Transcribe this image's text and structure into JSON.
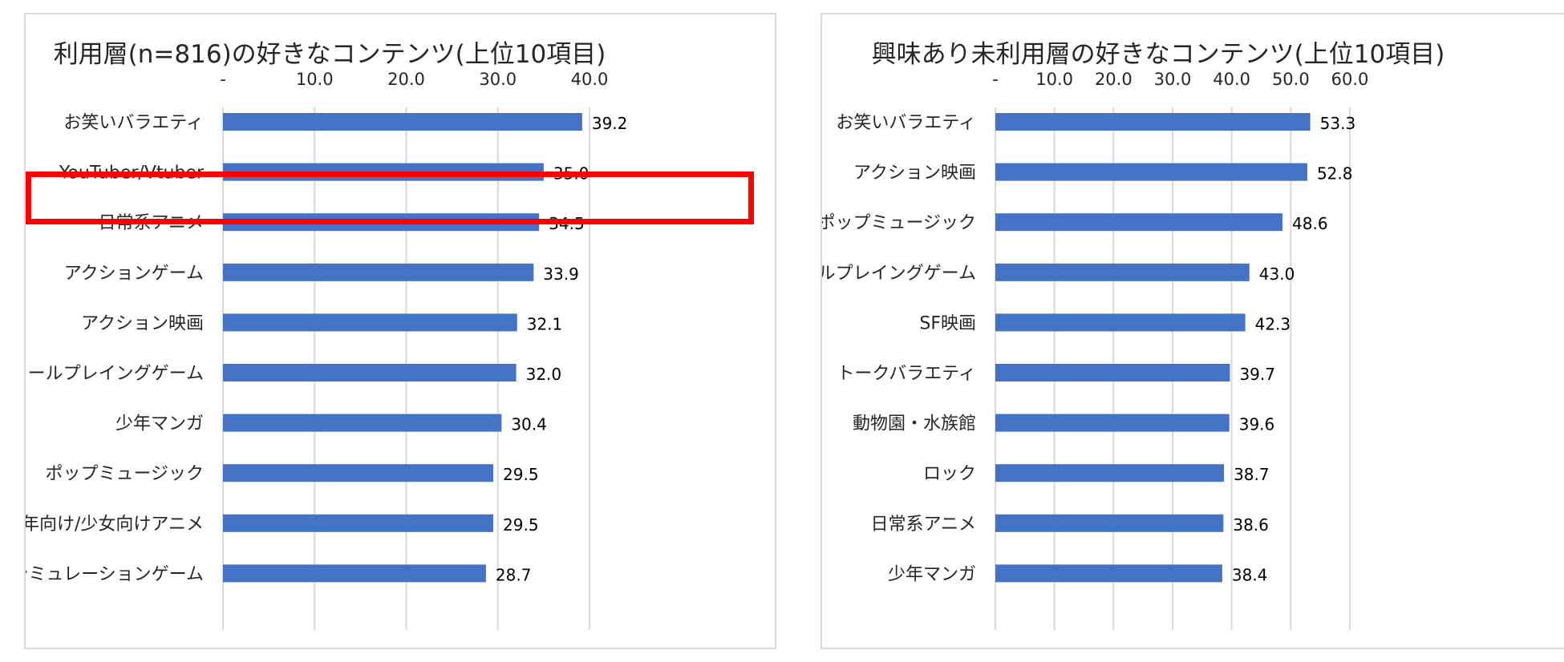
{
  "charts": [
    {
      "title": "利用層(n=816)の好きなコンテンツ(上位10項目)"
    },
    {
      "title": "興味あり未利用層の好きなコンテンツ(上位10項目)"
    }
  ],
  "chart_data": [
    {
      "type": "bar",
      "orientation": "horizontal",
      "title": "利用層(n=816)の好きなコンテンツ(上位10項目)",
      "categories": [
        "お笑いバラエティ",
        "YouTuber/Vtuber",
        "日常系アニメ",
        "アクションゲーム",
        "アクション映画",
        "ロールプレイングゲーム",
        "少年マンガ",
        "ポップミュージック",
        "少年向け/少女向けアニメ",
        "シミュレーションゲーム"
      ],
      "values": [
        39.2,
        35.0,
        34.5,
        33.9,
        32.1,
        32.0,
        30.4,
        29.5,
        29.5,
        28.7
      ],
      "value_labels": [
        "39.2",
        "35.0",
        "34.5",
        "33.9",
        "32.1",
        "32.0",
        "30.4",
        "29.5",
        "29.5",
        "28.7"
      ],
      "xlim": [
        0,
        40
      ],
      "ticks": [
        0,
        10,
        20,
        30,
        40
      ],
      "tick_labels": [
        "-",
        "10.0",
        "20.0",
        "30.0",
        "40.0"
      ],
      "axis_position": "top",
      "grid": true,
      "bar_color": "#4472c4",
      "highlighted_category": "YouTuber/Vtuber",
      "highlight_color": "#ff0000"
    },
    {
      "type": "bar",
      "orientation": "horizontal",
      "title": "興味あり未利用層の好きなコンテンツ(上位10項目)",
      "categories": [
        "お笑いバラエティ",
        "アクション映画",
        "ポップミュージック",
        "ロールプレイングゲーム",
        "SF映画",
        "トークバラエティ",
        "動物園・水族館",
        "ロック",
        "日常系アニメ",
        "少年マンガ"
      ],
      "values": [
        53.3,
        52.8,
        48.6,
        43.0,
        42.3,
        39.7,
        39.6,
        38.7,
        38.6,
        38.4
      ],
      "value_labels": [
        "53.3",
        "52.8",
        "48.6",
        "43.0",
        "42.3",
        "39.7",
        "39.6",
        "38.7",
        "38.6",
        "38.4"
      ],
      "xlim": [
        0,
        60
      ],
      "ticks": [
        0,
        10,
        20,
        30,
        40,
        50,
        60
      ],
      "tick_labels": [
        "-",
        "10.0",
        "20.0",
        "30.0",
        "40.0",
        "50.0",
        "60.0"
      ],
      "axis_position": "top",
      "grid": true,
      "bar_color": "#4472c4"
    }
  ]
}
